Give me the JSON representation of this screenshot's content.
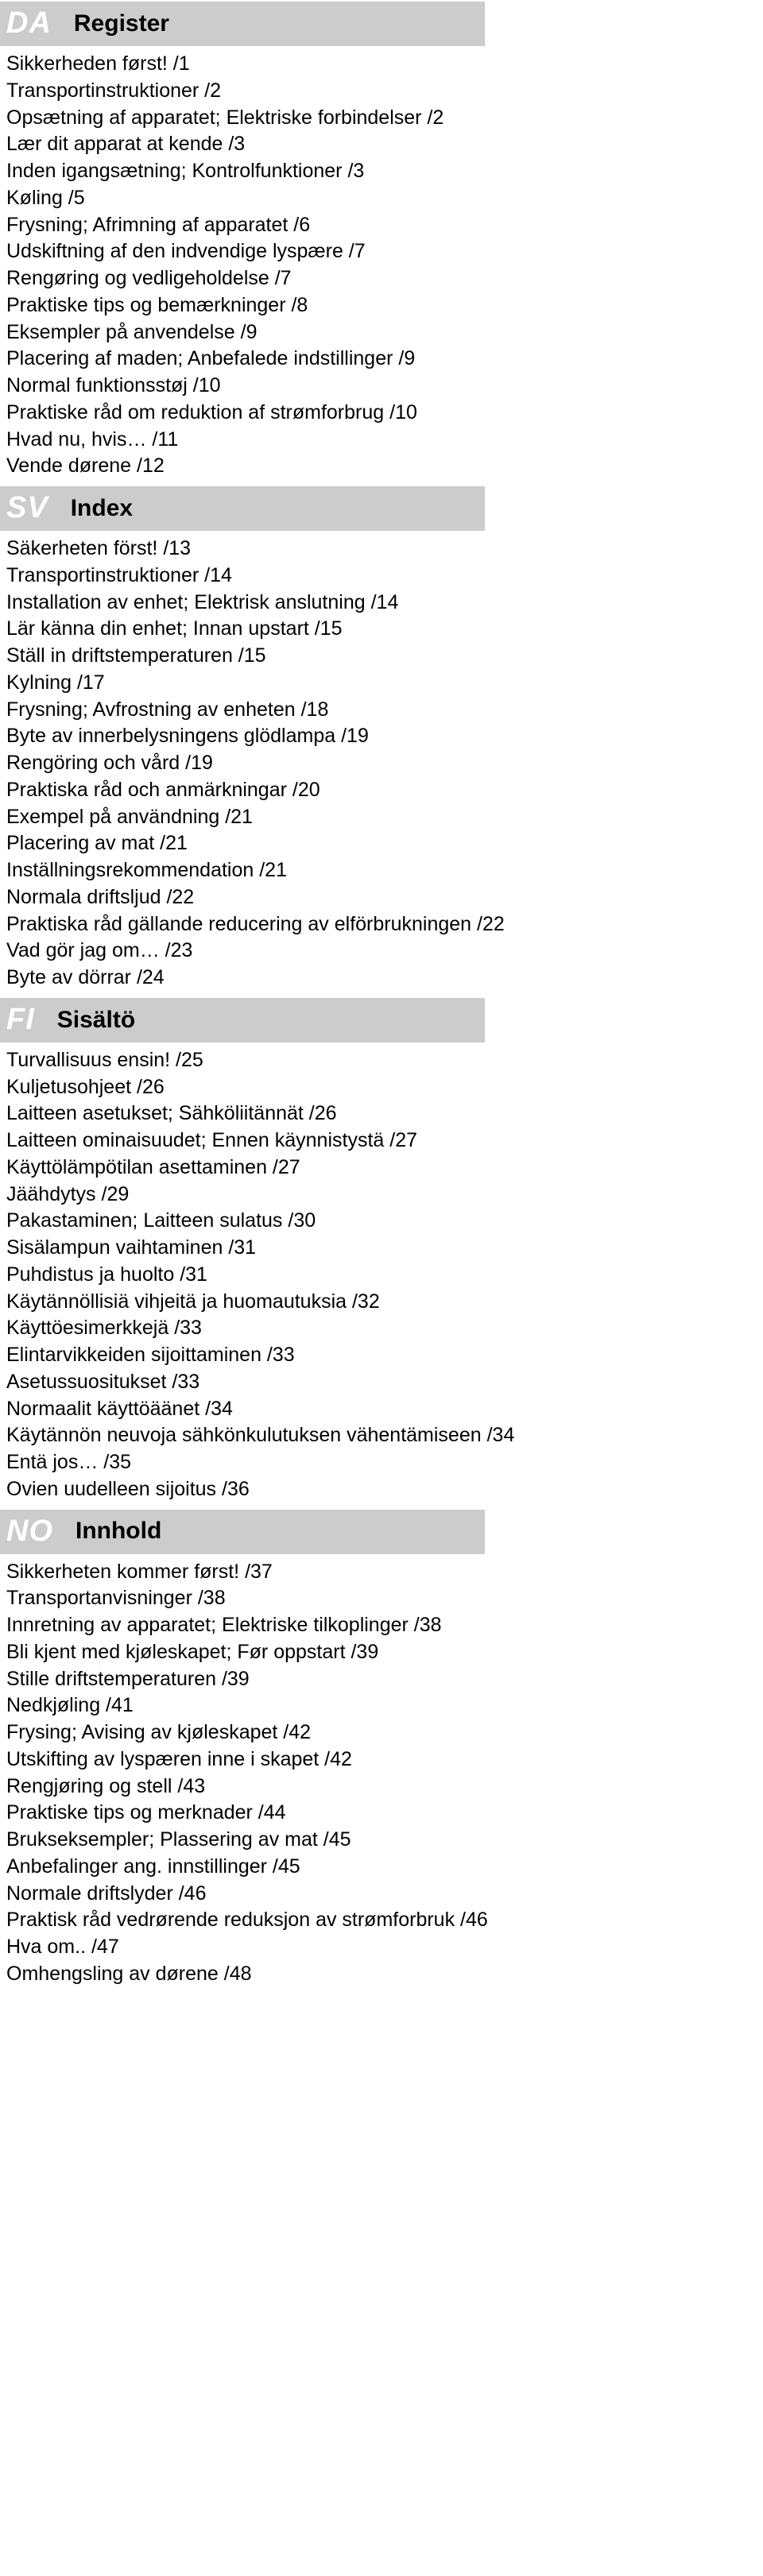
{
  "sections": [
    {
      "lang": "DA",
      "title": "Register",
      "items": [
        "Sikkerheden først! /1",
        "Transportinstruktioner /2",
        "Opsætning af apparatet; Elektriske forbindelser /2",
        "Lær dit apparat at kende /3",
        "Inden igangsætning; Kontrolfunktioner /3",
        "Køling /5",
        "Frysning; Afrimning af apparatet /6",
        "Udskiftning af den indvendige lyspære /7",
        "Rengøring og vedligeholdelse /7",
        "Praktiske tips og bemærkninger /8",
        "Eksempler på anvendelse /9",
        "Placering af maden; Anbefalede indstillinger /9",
        "Normal funktionsstøj /10",
        "Praktiske råd om reduktion af strømforbrug /10",
        "Hvad nu, hvis… /11",
        "Vende dørene /12"
      ]
    },
    {
      "lang": "SV",
      "title": "Index",
      "items": [
        "Säkerheten först! /13",
        "Transportinstruktioner /14",
        "Installation av enhet; Elektrisk anslutning /14",
        "Lär känna din enhet; Innan upstart /15",
        "Ställ in driftstemperaturen /15",
        "Kylning /17",
        "Frysning; Avfrostning av enheten /18",
        "Byte av innerbelysningens glödlampa /19",
        "Rengöring och vård /19",
        "Praktiska råd och anmärkningar /20",
        "Exempel på användning /21",
        "Placering av mat /21",
        "Inställningsrekommendation /21",
        "Normala driftsljud /22",
        "Praktiska råd gällande reducering av elförbrukningen /22",
        "Vad gör jag om… /23",
        "Byte av dörrar /24"
      ]
    },
    {
      "lang": "FI",
      "title": "Sisältö",
      "items": [
        "Turvallisuus ensin! /25",
        "Kuljetusohjeet /26",
        "Laitteen asetukset; Sähköliitännät /26",
        "Laitteen ominaisuudet; Ennen käynnistystä /27",
        "Käyttölämpötilan asettaminen /27",
        "Jäähdytys /29",
        "Pakastaminen; Laitteen sulatus /30",
        "Sisälampun vaihtaminen /31",
        "Puhdistus ja huolto /31",
        "Käytännöllisiä vihjeitä ja huomautuksia /32",
        "Käyttöesimerkkejä /33",
        "Elintarvikkeiden sijoittaminen /33",
        "Asetussuositukset /33",
        "Normaalit käyttöäänet /34",
        "Käytännön neuvoja sähkönkulutuksen vähentämiseen /34",
        "Entä jos… /35",
        "Ovien uudelleen sijoitus /36"
      ]
    },
    {
      "lang": "NO",
      "title": "Innhold",
      "items": [
        "Sikkerheten kommer først! /37",
        "Transportanvisninger /38",
        "Innretning av apparatet; Elektriske tilkoplinger /38",
        "Bli kjent med kjøleskapet; Før oppstart /39",
        "Stille driftstemperaturen /39",
        "Nedkjøling /41",
        "Frysing; Avising av kjøleskapet /42",
        "Utskifting av lyspæren inne i skapet /42",
        "Rengjøring og stell /43",
        "Praktiske tips og merknader /44",
        "Brukseksempler; Plassering av mat /45",
        "Anbefalinger ang. innstillinger /45",
        "Normale driftslyder /46",
        "Praktisk råd vedrørende reduksjon av strømforbruk /46",
        "Hva om.. /47",
        "Omhengsling av dørene /48"
      ]
    }
  ]
}
